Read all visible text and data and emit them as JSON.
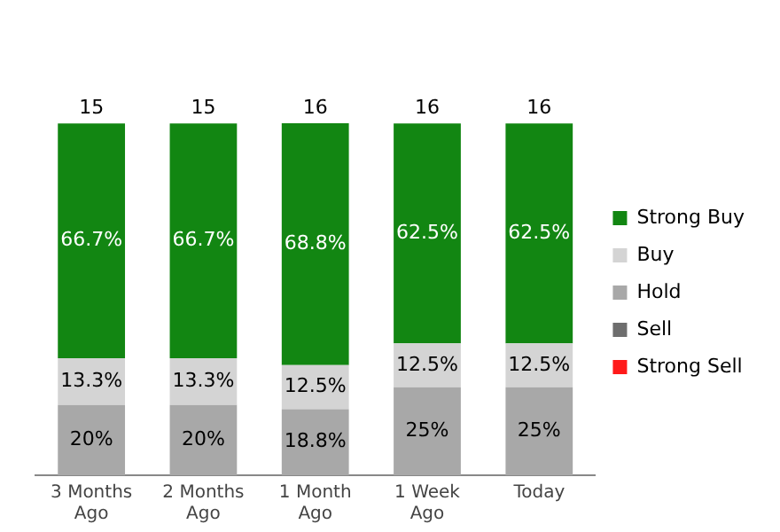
{
  "chart_data": {
    "type": "bar",
    "stacked": true,
    "categories": [
      "3 Months Ago",
      "2 Months Ago",
      "1 Month Ago",
      "1 Week Ago",
      "Today"
    ],
    "series": [
      {
        "name": "Strong Sell",
        "color": "#ff1a1a",
        "values": [
          null,
          null,
          null,
          null,
          null
        ]
      },
      {
        "name": "Sell",
        "color": "#6e6e6e",
        "values": [
          null,
          null,
          null,
          null,
          null
        ]
      },
      {
        "name": "Hold",
        "color": "#a8a8a8",
        "values": [
          20,
          20,
          18.8,
          25,
          25
        ],
        "value_labels": [
          "20%",
          "20%",
          "18.8%",
          "25%",
          "25%"
        ]
      },
      {
        "name": "Buy",
        "color": "#d4d4d4",
        "values": [
          13.3,
          13.3,
          12.5,
          12.5,
          12.5
        ],
        "value_labels": [
          "13.3%",
          "13.3%",
          "12.5%",
          "12.5%",
          "12.5%"
        ]
      },
      {
        "name": "Strong Buy",
        "color": "#128612",
        "values": [
          66.7,
          66.7,
          68.8,
          62.5,
          62.5
        ],
        "value_labels": [
          "66.7%",
          "66.7%",
          "68.8%",
          "62.5%",
          "62.5%"
        ]
      }
    ],
    "annotations": [
      "15",
      "15",
      "16",
      "16",
      "16"
    ],
    "tick_labels": "x",
    "grid": false,
    "legend": "right"
  }
}
